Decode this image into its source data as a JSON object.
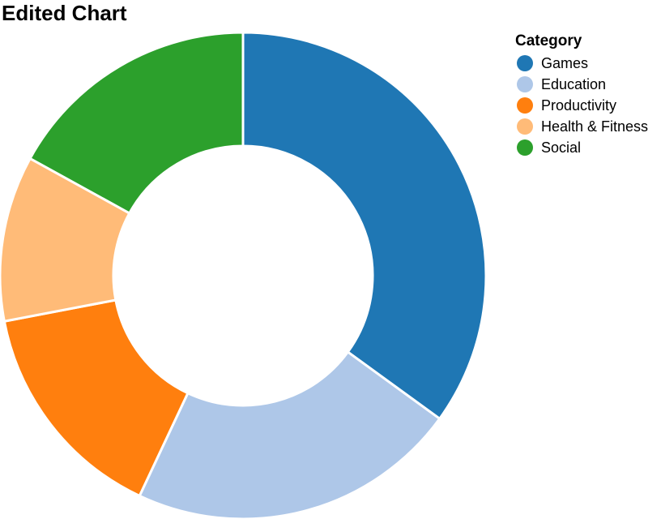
{
  "chart_data": {
    "type": "pie",
    "variant": "donut",
    "title": "Edited Chart",
    "legend": {
      "title": "Category",
      "placement": "top-right"
    },
    "categories": [
      "Games",
      "Education",
      "Productivity",
      "Health & Fitness",
      "Social"
    ],
    "values": [
      35,
      22,
      15,
      11,
      17
    ],
    "colors": [
      "#1f77b4",
      "#aec7e8",
      "#ff7f0e",
      "#ffbb78",
      "#2ca02c"
    ]
  }
}
